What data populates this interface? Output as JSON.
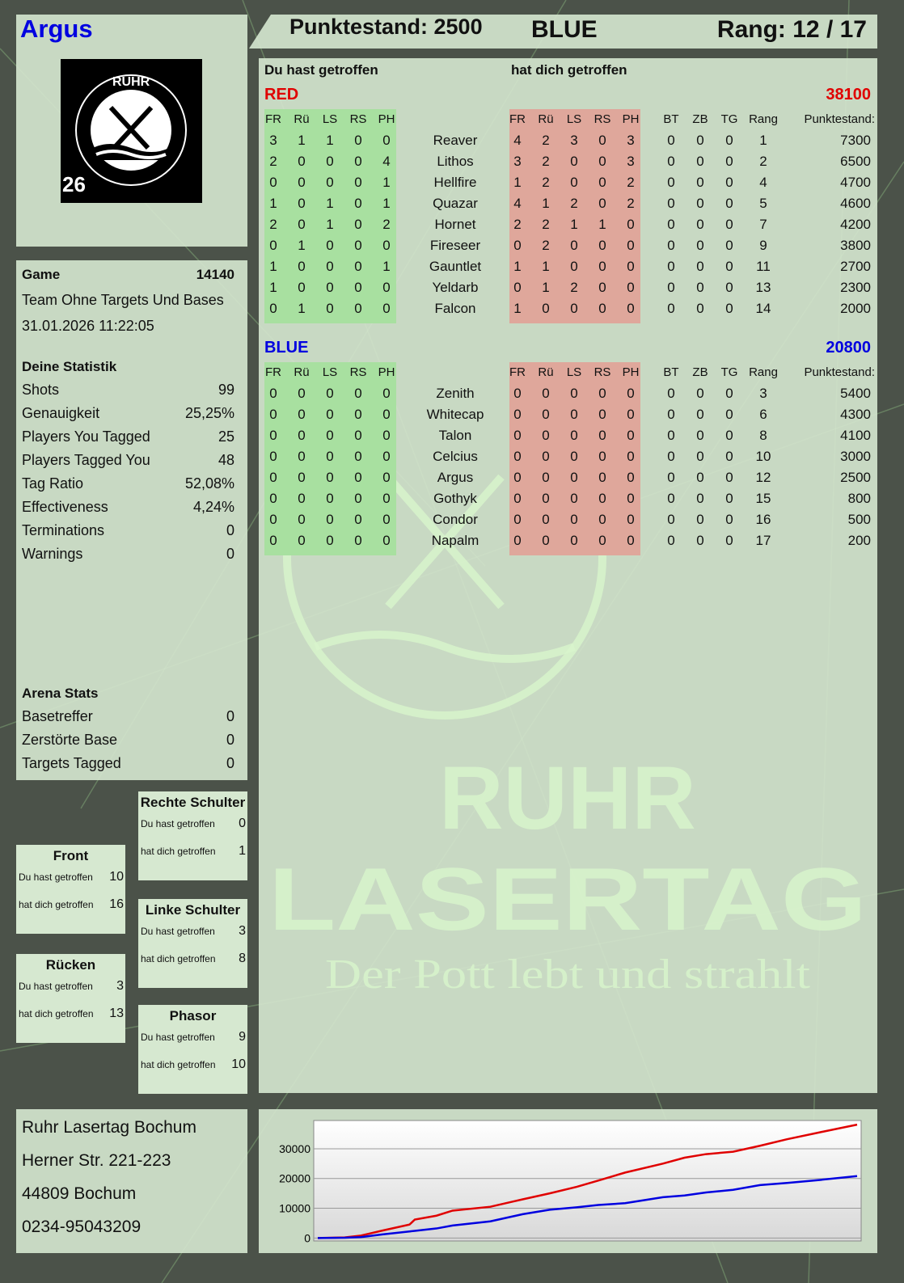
{
  "player": {
    "name": "Argus",
    "score_label": "Punktestand: 2500",
    "team": "BLUE",
    "rank_label": "Rang: 12 / 17",
    "badge_number": "26"
  },
  "logo": {
    "top": "RUHR",
    "bottom": "LASERTAG",
    "watermark_line1": "RUHR",
    "watermark_line2": "LASERTAG",
    "slogan": "Der Pott lebt und strahlt"
  },
  "game": {
    "label": "Game",
    "id": "14140",
    "mode": "Team Ohne Targets Und Bases",
    "datetime": "31.01.2026 11:22:05"
  },
  "stats": {
    "title": "Deine Statistik",
    "items": [
      {
        "label": "Shots",
        "value": "99"
      },
      {
        "label": "Genauigkeit",
        "value": "25,25%"
      },
      {
        "label": "Players You Tagged",
        "value": "25"
      },
      {
        "label": "Players Tagged You",
        "value": "48"
      },
      {
        "label": "Tag Ratio",
        "value": "52,08%"
      },
      {
        "label": "Effectiveness",
        "value": "4,24%"
      },
      {
        "label": "Terminations",
        "value": "0"
      },
      {
        "label": "Warnings",
        "value": "0"
      }
    ]
  },
  "arena": {
    "title": "Arena Stats",
    "items": [
      {
        "label": "Basetreffer",
        "value": "0"
      },
      {
        "label": "Zerstörte Base",
        "value": "0"
      },
      {
        "label": "Targets Tagged",
        "value": "0"
      }
    ]
  },
  "zones": [
    {
      "title": "Rechte Schulter",
      "hit": "0",
      "got": "1"
    },
    {
      "title": "Front",
      "hit": "10",
      "got": "16"
    },
    {
      "title": "Linke Schulter",
      "hit": "3",
      "got": "8"
    },
    {
      "title": "Rücken",
      "hit": "3",
      "got": "13"
    },
    {
      "title": "Phasor",
      "hit": "9",
      "got": "10"
    }
  ],
  "zone_labels": {
    "hit": "Du hast getroffen",
    "got": "hat dich getroffen"
  },
  "table": {
    "you_hit": "Du hast getroffen",
    "hit_you": "hat dich getroffen",
    "cols_zone": [
      "FR",
      "Rü",
      "LS",
      "RS",
      "PH"
    ],
    "cols_extra": [
      "BT",
      "ZB",
      "TG",
      "Rang"
    ],
    "col_score": "Punktestand:",
    "teams": [
      {
        "name": "RED",
        "total": "38100",
        "color": "#e00000",
        "players": [
          {
            "name": "Reaver",
            "hit": [
              3,
              1,
              1,
              0,
              0
            ],
            "got": [
              4,
              2,
              3,
              0,
              3
            ],
            "extra": [
              0,
              0,
              0,
              1
            ],
            "score": "7300"
          },
          {
            "name": "Lithos",
            "hit": [
              2,
              0,
              0,
              0,
              4
            ],
            "got": [
              3,
              2,
              0,
              0,
              3
            ],
            "extra": [
              0,
              0,
              0,
              2
            ],
            "score": "6500"
          },
          {
            "name": "Hellfire",
            "hit": [
              0,
              0,
              0,
              0,
              1
            ],
            "got": [
              1,
              2,
              0,
              0,
              2
            ],
            "extra": [
              0,
              0,
              0,
              4
            ],
            "score": "4700"
          },
          {
            "name": "Quazar",
            "hit": [
              1,
              0,
              1,
              0,
              1
            ],
            "got": [
              4,
              1,
              2,
              0,
              2
            ],
            "extra": [
              0,
              0,
              0,
              5
            ],
            "score": "4600"
          },
          {
            "name": "Hornet",
            "hit": [
              2,
              0,
              1,
              0,
              2
            ],
            "got": [
              2,
              2,
              1,
              1,
              0
            ],
            "extra": [
              0,
              0,
              0,
              7
            ],
            "score": "4200"
          },
          {
            "name": "Fireseer",
            "hit": [
              0,
              1,
              0,
              0,
              0
            ],
            "got": [
              0,
              2,
              0,
              0,
              0
            ],
            "extra": [
              0,
              0,
              0,
              9
            ],
            "score": "3800"
          },
          {
            "name": "Gauntlet",
            "hit": [
              1,
              0,
              0,
              0,
              1
            ],
            "got": [
              1,
              1,
              0,
              0,
              0
            ],
            "extra": [
              0,
              0,
              0,
              11
            ],
            "score": "2700"
          },
          {
            "name": "Yeldarb",
            "hit": [
              1,
              0,
              0,
              0,
              0
            ],
            "got": [
              0,
              1,
              2,
              0,
              0
            ],
            "extra": [
              0,
              0,
              0,
              13
            ],
            "score": "2300"
          },
          {
            "name": "Falcon",
            "hit": [
              0,
              1,
              0,
              0,
              0
            ],
            "got": [
              1,
              0,
              0,
              0,
              0
            ],
            "extra": [
              0,
              0,
              0,
              14
            ],
            "score": "2000"
          }
        ]
      },
      {
        "name": "BLUE",
        "total": "20800",
        "color": "#0000e0",
        "players": [
          {
            "name": "Zenith",
            "hit": [
              0,
              0,
              0,
              0,
              0
            ],
            "got": [
              0,
              0,
              0,
              0,
              0
            ],
            "extra": [
              0,
              0,
              0,
              3
            ],
            "score": "5400"
          },
          {
            "name": "Whitecap",
            "hit": [
              0,
              0,
              0,
              0,
              0
            ],
            "got": [
              0,
              0,
              0,
              0,
              0
            ],
            "extra": [
              0,
              0,
              0,
              6
            ],
            "score": "4300"
          },
          {
            "name": "Talon",
            "hit": [
              0,
              0,
              0,
              0,
              0
            ],
            "got": [
              0,
              0,
              0,
              0,
              0
            ],
            "extra": [
              0,
              0,
              0,
              8
            ],
            "score": "4100"
          },
          {
            "name": "Celcius",
            "hit": [
              0,
              0,
              0,
              0,
              0
            ],
            "got": [
              0,
              0,
              0,
              0,
              0
            ],
            "extra": [
              0,
              0,
              0,
              10
            ],
            "score": "3000"
          },
          {
            "name": "Argus",
            "hit": [
              0,
              0,
              0,
              0,
              0
            ],
            "got": [
              0,
              0,
              0,
              0,
              0
            ],
            "extra": [
              0,
              0,
              0,
              12
            ],
            "score": "2500"
          },
          {
            "name": "Gothyk",
            "hit": [
              0,
              0,
              0,
              0,
              0
            ],
            "got": [
              0,
              0,
              0,
              0,
              0
            ],
            "extra": [
              0,
              0,
              0,
              15
            ],
            "score": "800"
          },
          {
            "name": "Condor",
            "hit": [
              0,
              0,
              0,
              0,
              0
            ],
            "got": [
              0,
              0,
              0,
              0,
              0
            ],
            "extra": [
              0,
              0,
              0,
              16
            ],
            "score": "500"
          },
          {
            "name": "Napalm",
            "hit": [
              0,
              0,
              0,
              0,
              0
            ],
            "got": [
              0,
              0,
              0,
              0,
              0
            ],
            "extra": [
              0,
              0,
              0,
              17
            ],
            "score": "200"
          }
        ]
      }
    ]
  },
  "address": {
    "lines": [
      "Ruhr Lasertag Bochum",
      "Herner Str. 221-223",
      "44809 Bochum",
      "0234-95043209"
    ]
  },
  "colors": {
    "hit_bg": "#a8e0a0",
    "got_bg": "#dfa79b",
    "red": "#e00000",
    "blue": "#0000e0"
  },
  "chart_data": {
    "type": "line",
    "ylim": [
      -1000,
      39500
    ],
    "yticks": [
      0,
      10000,
      20000,
      30000
    ],
    "grid": true,
    "x": [
      0,
      5,
      8,
      12,
      17,
      18,
      22,
      25,
      32,
      38,
      43,
      48,
      52,
      57,
      64,
      68,
      72,
      77,
      82,
      87,
      93,
      100
    ],
    "series": [
      {
        "color": "#e00000",
        "values": [
          0,
          200,
          800,
          2500,
          4500,
          6200,
          7500,
          9200,
          10500,
          13000,
          15000,
          17200,
          19300,
          22000,
          25000,
          27000,
          28200,
          29000,
          31000,
          33200,
          35500,
          38100
        ]
      },
      {
        "color": "#0000e0",
        "values": [
          0,
          100,
          300,
          1200,
          2200,
          2400,
          3200,
          4200,
          5600,
          8000,
          9500,
          10300,
          11100,
          11700,
          13700,
          14300,
          15300,
          16200,
          17800,
          18500,
          19500,
          20800
        ]
      }
    ]
  }
}
